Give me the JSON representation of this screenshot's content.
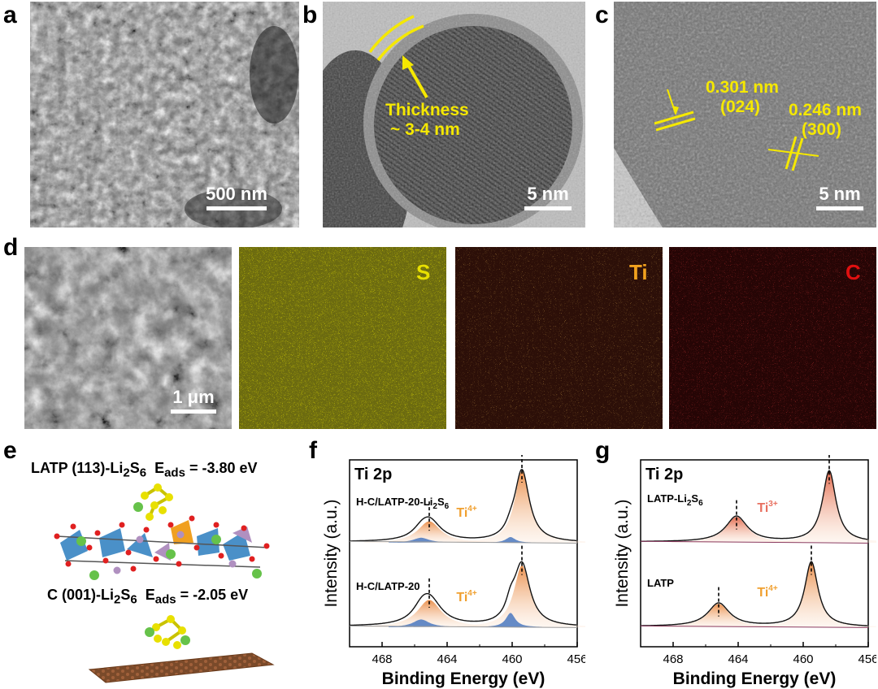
{
  "panels": {
    "a": {
      "label": "a",
      "scale": "500 nm"
    },
    "b": {
      "label": "b",
      "scale": "5 nm",
      "annotation_line1": "Thickness",
      "annotation_line2": "~ 3-4 nm"
    },
    "c": {
      "label": "c",
      "scale": "5 nm",
      "d1": "0.301 nm",
      "p1": "(024)",
      "d2": "0.246 nm",
      "p2": "(300)"
    },
    "d": {
      "label": "d",
      "scale": "1 μm",
      "maps": [
        {
          "element": "S",
          "color": "#e8e000",
          "bg": "#8f8a10"
        },
        {
          "element": "Ti",
          "color": "#f2a21e",
          "bg": "#4a1a0c"
        },
        {
          "element": "C",
          "color": "#e01010",
          "bg": "#3a0808"
        }
      ]
    },
    "e": {
      "label": "e",
      "top_a": "LATP (113)-Li",
      "top_sub2": "2",
      "top_b": "S",
      "top_sub6": "6",
      "top_e": "  E",
      "top_eads": "ads",
      "top_val": " = -3.80 eV",
      "bot_a": "C (001)-Li",
      "bot_sub2": "2",
      "bot_b": "S",
      "bot_sub6": "6",
      "bot_e": "  E",
      "bot_eads": "ads",
      "bot_val": " = -2.05 eV"
    },
    "f": {
      "label": "f"
    },
    "g": {
      "label": "g"
    }
  },
  "chart_data": [
    {
      "type": "line",
      "panel": "f",
      "title": "Ti 2p",
      "xlabel": "Binding Energy (eV)",
      "ylabel": "Intensity (a.u.)",
      "xlim": [
        470,
        456
      ],
      "xticks": [
        "468",
        "464",
        "460",
        "456"
      ],
      "series": [
        {
          "name": "H-C/LATP-20-Li2S6",
          "label_a": "H-C/LATP-20-Li",
          "label_sub2": "2",
          "label_b": "S",
          "label_sub6": "6",
          "state": "Ti4+",
          "state_base": "Ti",
          "state_sup": "4+",
          "peaks": [
            {
              "center": 459.4,
              "height": 1.0,
              "width": 0.55
            },
            {
              "center": 465.1,
              "height": 0.3,
              "width": 0.85
            }
          ],
          "ti3_peaks": [
            {
              "center": 460.1,
              "height": 0.08,
              "width": 0.35
            },
            {
              "center": 465.6,
              "height": 0.07,
              "width": 0.6
            }
          ],
          "dashed": [
            465.1,
            459.4
          ]
        },
        {
          "name": "H-C/LATP-20",
          "label_a": "H-C/LATP-20",
          "state": "Ti4+",
          "state_base": "Ti",
          "state_sup": "4+",
          "peaks": [
            {
              "center": 459.4,
              "height": 0.95,
              "width": 0.6
            },
            {
              "center": 465.1,
              "height": 0.42,
              "width": 0.9
            }
          ],
          "ti3_peaks": [
            {
              "center": 460.1,
              "height": 0.22,
              "width": 0.35
            },
            {
              "center": 465.6,
              "height": 0.12,
              "width": 0.6
            }
          ],
          "dashed": [
            465.1,
            459.4
          ]
        }
      ]
    },
    {
      "type": "line",
      "panel": "g",
      "title": "Ti 2p",
      "xlabel": "Binding Energy (eV)",
      "ylabel": "Intensity (a.u.)",
      "xlim": [
        470,
        456
      ],
      "xticks": [
        "468",
        "464",
        "460",
        "456"
      ],
      "series": [
        {
          "name": "LATP-Li2S6",
          "label_a": "LATP-Li",
          "label_sub2": "2",
          "label_b": "S",
          "label_sub6": "6",
          "state": "Ti3+",
          "state_base": "Ti",
          "state_sup": "3+",
          "peaks": [
            {
              "center": 458.4,
              "height": 1.0,
              "width": 0.5
            },
            {
              "center": 464.1,
              "height": 0.36,
              "width": 0.8
            }
          ],
          "dashed": [
            464.1,
            458.4
          ]
        },
        {
          "name": "LATP",
          "label_a": "LATP",
          "state": "Ti4+",
          "state_base": "Ti",
          "state_sup": "4+",
          "peaks": [
            {
              "center": 459.5,
              "height": 1.0,
              "width": 0.5
            },
            {
              "center": 465.2,
              "height": 0.36,
              "width": 0.8
            }
          ],
          "dashed": [
            465.2,
            459.5
          ]
        }
      ]
    }
  ]
}
